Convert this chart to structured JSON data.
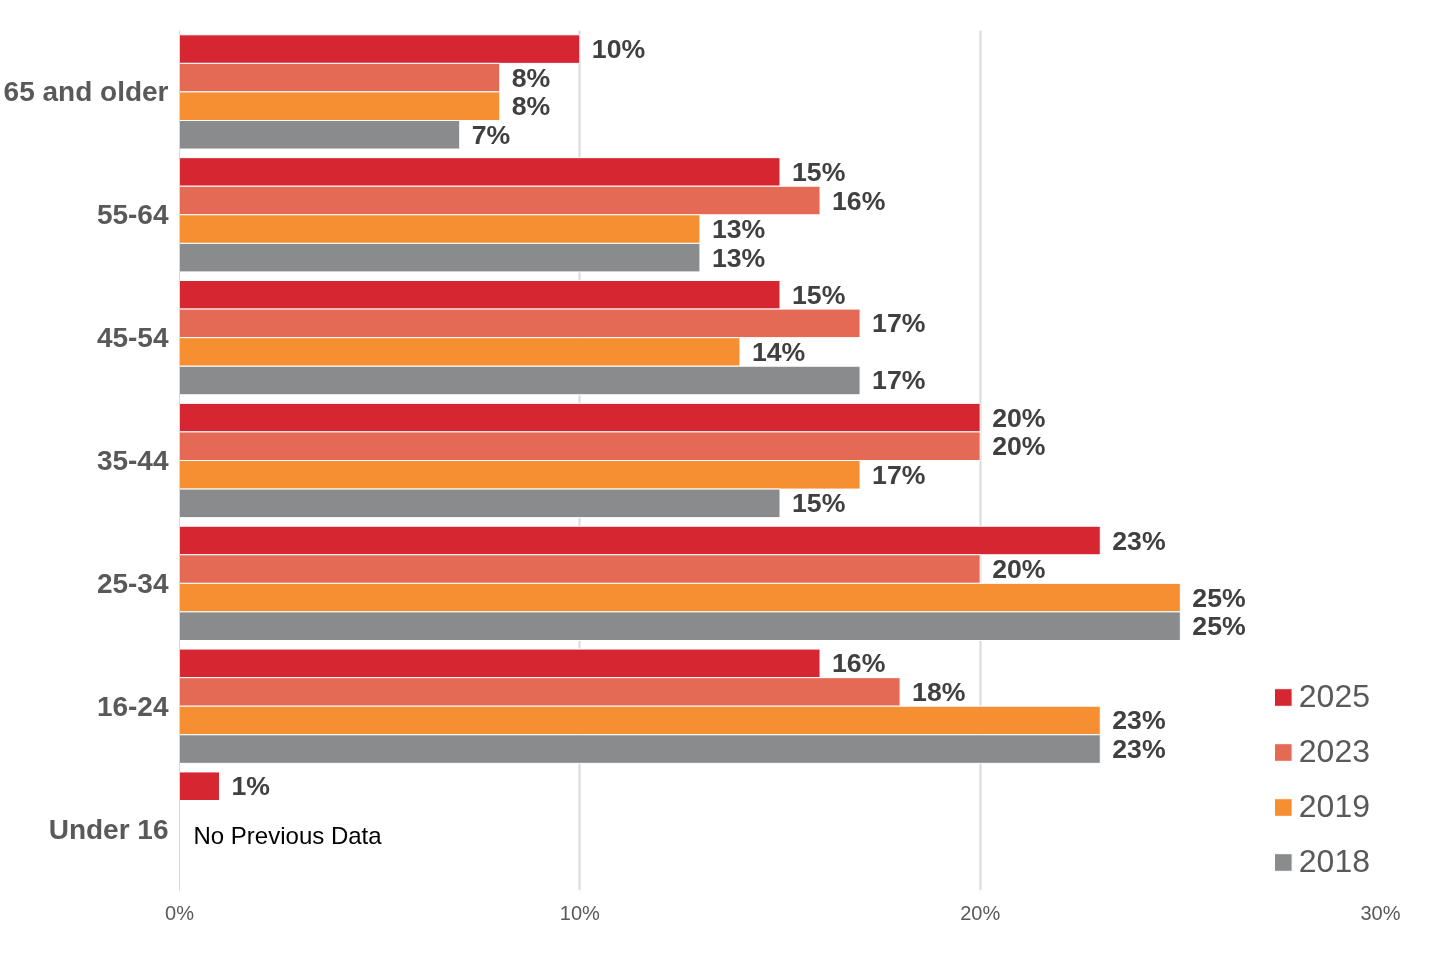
{
  "chart_data": {
    "type": "bar",
    "orientation": "horizontal",
    "categories": [
      "65 and older",
      "55-64",
      "45-54",
      "35-44",
      "25-34",
      "16-24",
      "Under 16"
    ],
    "series": [
      {
        "name": "2025",
        "color": "#d52632",
        "values": [
          10,
          15,
          15,
          20,
          23,
          16,
          1
        ],
        "value_labels": [
          "10%",
          "15%",
          "15%",
          "20%",
          "23%",
          "16%",
          "1%"
        ]
      },
      {
        "name": "2023",
        "color": "#e56a55",
        "values": [
          8,
          16,
          17,
          20,
          20,
          18,
          null
        ],
        "value_labels": [
          "8%",
          "16%",
          "17%",
          "20%",
          "20%",
          "18%",
          null
        ]
      },
      {
        "name": "2019",
        "color": "#f58f31",
        "values": [
          8,
          13,
          14,
          17,
          25,
          23,
          null
        ],
        "value_labels": [
          "8%",
          "13%",
          "14%",
          "17%",
          "25%",
          "23%",
          null
        ]
      },
      {
        "name": "2018",
        "color": "#8a8b8d",
        "values": [
          7,
          13,
          17,
          15,
          25,
          23,
          null
        ],
        "value_labels": [
          "7%",
          "13%",
          "17%",
          "15%",
          "25%",
          "23%",
          null
        ]
      }
    ],
    "xlim": [
      0,
      30
    ],
    "xticks": [
      {
        "value": 0,
        "label": "0%"
      },
      {
        "value": 10,
        "label": "10%"
      },
      {
        "value": 20,
        "label": "20%"
      },
      {
        "value": 30,
        "label": "30%"
      }
    ],
    "grid": "x",
    "legend": "bottom right",
    "annotations": [
      "No Previous Data"
    ]
  }
}
